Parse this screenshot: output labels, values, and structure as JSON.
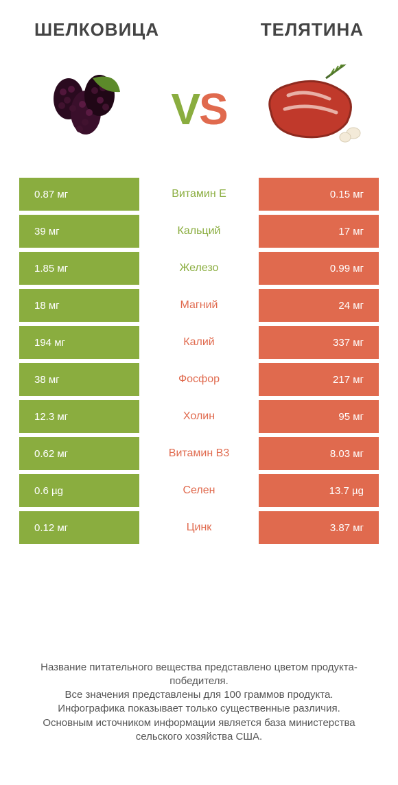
{
  "header": {
    "left_title": "ШЕЛКОВИЦА",
    "right_title": "ТЕЛЯТИНА",
    "vs_v": "V",
    "vs_s": "S"
  },
  "colors": {
    "green": "#8aad3f",
    "red": "#e06a4e",
    "bg": "#ffffff",
    "text": "#444444"
  },
  "rows": [
    {
      "left": "0.87 мг",
      "label": "Витамин E",
      "right": "0.15 мг",
      "winner": "left"
    },
    {
      "left": "39 мг",
      "label": "Кальций",
      "right": "17 мг",
      "winner": "left"
    },
    {
      "left": "1.85 мг",
      "label": "Железо",
      "right": "0.99 мг",
      "winner": "left"
    },
    {
      "left": "18 мг",
      "label": "Магний",
      "right": "24 мг",
      "winner": "right"
    },
    {
      "left": "194 мг",
      "label": "Калий",
      "right": "337 мг",
      "winner": "right"
    },
    {
      "left": "38 мг",
      "label": "Фосфор",
      "right": "217 мг",
      "winner": "right"
    },
    {
      "left": "12.3 мг",
      "label": "Холин",
      "right": "95 мг",
      "winner": "right"
    },
    {
      "left": "0.62 мг",
      "label": "Витамин B3",
      "right": "8.03 мг",
      "winner": "right"
    },
    {
      "left": "0.6 µg",
      "label": "Селен",
      "right": "13.7 µg",
      "winner": "right"
    },
    {
      "left": "0.12 мг",
      "label": "Цинк",
      "right": "3.87 мг",
      "winner": "right"
    }
  ],
  "footer": {
    "line1": "Название питательного вещества представлено цветом продукта-победителя.",
    "line2": "Все значения представлены для 100 граммов продукта.",
    "line3": "Инфографика показывает только существенные различия.",
    "line4": "Основным источником информации является база министерства сельского хозяйства США."
  }
}
